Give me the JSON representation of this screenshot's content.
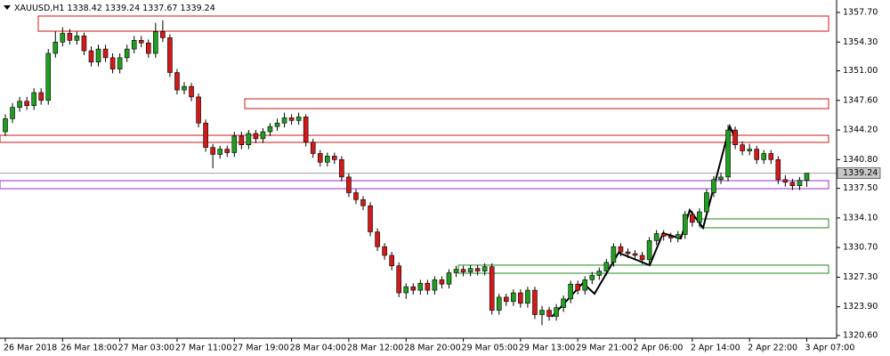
{
  "chart_data": {
    "type": "candlestick",
    "title": "XAUUSD,H1",
    "categories": [
      "26 Mar 2018",
      null,
      null,
      null,
      null,
      null,
      null,
      null,
      "26 Mar 18:00",
      null,
      null,
      null,
      null,
      null,
      null,
      null,
      "27 Mar 03:00",
      null,
      null,
      null,
      null,
      null,
      null,
      null,
      "27 Mar 11:00",
      null,
      null,
      null,
      null,
      null,
      null,
      null,
      "27 Mar 19:00",
      null,
      null,
      null,
      null,
      null,
      null,
      null,
      "28 Mar 04:00",
      null,
      null,
      null,
      null,
      null,
      null,
      null,
      "28 Mar 12:00",
      null,
      null,
      null,
      null,
      null,
      null,
      null,
      "28 Mar 20:00",
      null,
      null,
      null,
      null,
      null,
      null,
      null,
      "29 Mar 05:00",
      null,
      null,
      null,
      null,
      null,
      null,
      null,
      "29 Mar 13:00",
      null,
      null,
      null,
      null,
      null,
      null,
      null,
      "29 Mar 21:00",
      null,
      null,
      null,
      null,
      null,
      null,
      null,
      "2 Apr 06:00",
      null,
      null,
      null,
      null,
      null,
      null,
      null,
      "2 Apr 14:00",
      null,
      null,
      null,
      null,
      null,
      null,
      null,
      "2 Apr 22:00",
      null,
      null,
      null,
      null,
      null,
      null,
      null,
      "3 Apr 07:00"
    ],
    "open": [
      1344.0,
      1345.5,
      1346.8,
      1347.5,
      1347.0,
      1348.5,
      1347.6,
      1353.0,
      1354.3,
      1355.3,
      1354.5,
      1355.0,
      1353.3,
      1352.0,
      1353.5,
      1352.5,
      1351.2,
      1352.5,
      1353.5,
      1354.5,
      1354.2,
      1353.0,
      1355.5,
      1354.8,
      1350.8,
      1348.8,
      1349.2,
      1348.0,
      1345.0,
      1342.2,
      1341.4,
      1342.0,
      1341.6,
      1343.5,
      1342.5,
      1343.8,
      1343.2,
      1344.0,
      1344.6,
      1345.0,
      1345.6,
      1345.3,
      1345.7,
      1342.8,
      1341.5,
      1340.5,
      1341.2,
      1340.8,
      1338.8,
      1337.0,
      1336.2,
      1335.5,
      1332.5,
      1330.8,
      1329.8,
      1328.6,
      1325.5,
      1326.2,
      1325.8,
      1326.6,
      1325.8,
      1327.0,
      1326.5,
      1327.8,
      1328.2,
      1327.9,
      1328.3,
      1328.0,
      1328.5,
      1323.5,
      1325.0,
      1324.5,
      1325.5,
      1324.3,
      1325.8,
      1323.0,
      1323.5,
      1322.8,
      1323.8,
      1324.8,
      1326.5,
      1325.8,
      1327.0,
      1327.5,
      1328.0,
      1329.0,
      1330.8,
      1330.2,
      1330.0,
      1329.8,
      1329.3,
      1331.5,
      1332.3,
      1332.0,
      1331.8,
      1332.2,
      1334.5,
      1333.6,
      1334.8,
      1337.0,
      1338.5,
      1338.8,
      1344.2,
      1342.5,
      1341.8,
      1342.0,
      1340.8,
      1341.5,
      1340.8,
      1338.5,
      1338.2,
      1337.8,
      1338.42
    ],
    "high": [
      1346.0,
      1347.3,
      1348.0,
      1348.0,
      1349.0,
      1349.0,
      1353.5,
      1355.5,
      1356.0,
      1355.8,
      1355.5,
      1355.4,
      1353.8,
      1354.0,
      1354.0,
      1353.0,
      1353.0,
      1354.0,
      1355.0,
      1355.0,
      1354.6,
      1356.5,
      1356.8,
      1355.2,
      1351.2,
      1349.7,
      1349.6,
      1348.4,
      1345.4,
      1342.6,
      1342.4,
      1342.4,
      1344.0,
      1344.0,
      1344.2,
      1344.2,
      1344.4,
      1345.0,
      1345.5,
      1346.2,
      1346.0,
      1346.2,
      1346.0,
      1343.2,
      1341.9,
      1341.6,
      1341.6,
      1341.2,
      1339.2,
      1337.4,
      1336.6,
      1335.9,
      1332.9,
      1331.2,
      1330.2,
      1329.0,
      1326.6,
      1326.6,
      1327.0,
      1327.0,
      1327.4,
      1327.4,
      1328.2,
      1328.6,
      1328.6,
      1328.7,
      1328.7,
      1328.9,
      1328.9,
      1325.4,
      1325.4,
      1325.9,
      1325.9,
      1326.2,
      1326.2,
      1324.0,
      1323.9,
      1324.2,
      1325.2,
      1326.9,
      1326.9,
      1327.4,
      1327.9,
      1328.4,
      1329.4,
      1331.2,
      1331.2,
      1330.6,
      1330.4,
      1330.2,
      1331.9,
      1332.7,
      1332.7,
      1332.4,
      1332.6,
      1334.9,
      1334.9,
      1335.2,
      1337.4,
      1338.9,
      1339.3,
      1344.8,
      1344.6,
      1342.9,
      1342.6,
      1342.4,
      1341.9,
      1341.9,
      1341.2,
      1339.0,
      1338.6,
      1338.8,
      1339.24
    ],
    "low": [
      1343.5,
      1345.0,
      1346.3,
      1346.5,
      1346.5,
      1347.1,
      1347.1,
      1352.5,
      1353.8,
      1354.0,
      1354.0,
      1352.8,
      1351.5,
      1351.5,
      1352.0,
      1350.7,
      1350.7,
      1352.0,
      1353.0,
      1353.7,
      1352.5,
      1352.5,
      1354.3,
      1350.3,
      1348.3,
      1348.3,
      1347.5,
      1344.5,
      1341.7,
      1339.8,
      1340.9,
      1341.1,
      1341.1,
      1342.0,
      1342.0,
      1342.7,
      1342.7,
      1343.5,
      1344.1,
      1344.5,
      1344.8,
      1344.8,
      1342.3,
      1341.0,
      1340.0,
      1340.0,
      1340.3,
      1338.3,
      1336.5,
      1335.7,
      1335.0,
      1332.0,
      1330.3,
      1329.3,
      1328.1,
      1325.0,
      1324.8,
      1325.3,
      1325.3,
      1325.3,
      1325.3,
      1326.0,
      1326.0,
      1327.3,
      1327.4,
      1327.4,
      1327.5,
      1327.5,
      1323.0,
      1323.0,
      1324.0,
      1324.0,
      1323.8,
      1323.8,
      1322.5,
      1321.8,
      1322.3,
      1322.3,
      1323.3,
      1324.3,
      1325.3,
      1325.3,
      1326.5,
      1327.0,
      1327.5,
      1328.5,
      1329.7,
      1329.5,
      1329.3,
      1328.8,
      1328.8,
      1331.0,
      1331.5,
      1331.3,
      1331.3,
      1331.7,
      1333.1,
      1333.1,
      1334.3,
      1336.5,
      1338.0,
      1338.3,
      1342.0,
      1341.3,
      1341.3,
      1340.3,
      1340.3,
      1340.3,
      1338.0,
      1337.7,
      1337.3,
      1337.3,
      1337.67
    ],
    "close": [
      1345.5,
      1346.8,
      1347.5,
      1347.0,
      1348.5,
      1347.6,
      1353.0,
      1354.3,
      1355.3,
      1354.5,
      1355.0,
      1353.3,
      1352.0,
      1353.5,
      1352.5,
      1351.2,
      1352.5,
      1353.5,
      1354.5,
      1354.2,
      1353.0,
      1355.5,
      1354.8,
      1350.8,
      1348.8,
      1349.2,
      1348.0,
      1345.0,
      1342.2,
      1341.4,
      1342.0,
      1341.6,
      1343.5,
      1342.5,
      1343.8,
      1343.2,
      1344.0,
      1344.6,
      1345.0,
      1345.6,
      1345.3,
      1345.7,
      1342.8,
      1341.5,
      1340.5,
      1341.2,
      1340.8,
      1338.8,
      1337.0,
      1336.2,
      1335.5,
      1332.5,
      1330.8,
      1329.8,
      1328.6,
      1325.5,
      1326.2,
      1325.8,
      1326.6,
      1325.8,
      1327.0,
      1326.5,
      1327.8,
      1328.2,
      1327.9,
      1328.3,
      1328.0,
      1328.5,
      1323.5,
      1325.0,
      1324.5,
      1325.5,
      1324.3,
      1325.8,
      1323.0,
      1323.5,
      1322.8,
      1323.8,
      1324.8,
      1326.5,
      1325.8,
      1327.0,
      1327.5,
      1328.0,
      1329.0,
      1330.8,
      1330.2,
      1330.0,
      1329.8,
      1329.3,
      1331.5,
      1332.3,
      1332.0,
      1331.8,
      1332.2,
      1334.5,
      1333.6,
      1334.8,
      1337.0,
      1338.5,
      1338.8,
      1344.2,
      1342.5,
      1341.8,
      1342.0,
      1340.8,
      1341.5,
      1340.8,
      1338.5,
      1338.2,
      1337.8,
      1338.42,
      1339.24
    ],
    "up_color": "#1f9e1f",
    "down_color": "#d11a1a",
    "wick_color": "#000000",
    "zones": [
      {
        "low": 1355.55,
        "high": 1357.29,
        "color": "#d11a1a"
      },
      {
        "low": 1346.66,
        "high": 1347.78,
        "color": "#d11a1a"
      },
      {
        "low": 1342.78,
        "high": 1343.59,
        "color": "#d11a1a"
      },
      {
        "low": 1337.46,
        "high": 1338.38,
        "color": "#9b30c8"
      },
      {
        "low": 1332.97,
        "high": 1333.99,
        "color": "#1f8a1f"
      },
      {
        "low": 1327.75,
        "high": 1328.68,
        "color": "#1f8a1f"
      }
    ],
    "price_line_color": "#a0a0a0",
    "ylim": [
      1320.29,
      1359.13
    ],
    "yticks": [
      {
        "value": 1357.7,
        "label": "1357.70"
      },
      {
        "value": 1354.3,
        "label": "1354.30"
      },
      {
        "value": 1351.0,
        "label": "1351.00"
      },
      {
        "value": 1347.6,
        "label": "1347.60"
      },
      {
        "value": 1344.2,
        "label": "1344.20"
      },
      {
        "value": 1340.8,
        "label": "1340.80"
      },
      {
        "value": 1337.5,
        "label": "1337.50"
      },
      {
        "value": 1334.1,
        "label": "1334.10"
      },
      {
        "value": 1330.7,
        "label": "1330.70"
      },
      {
        "value": 1327.3,
        "label": "1327.30"
      },
      {
        "value": 1323.9,
        "label": "1323.90"
      },
      {
        "value": 1320.6,
        "label": "1320.60"
      }
    ]
  }
}
